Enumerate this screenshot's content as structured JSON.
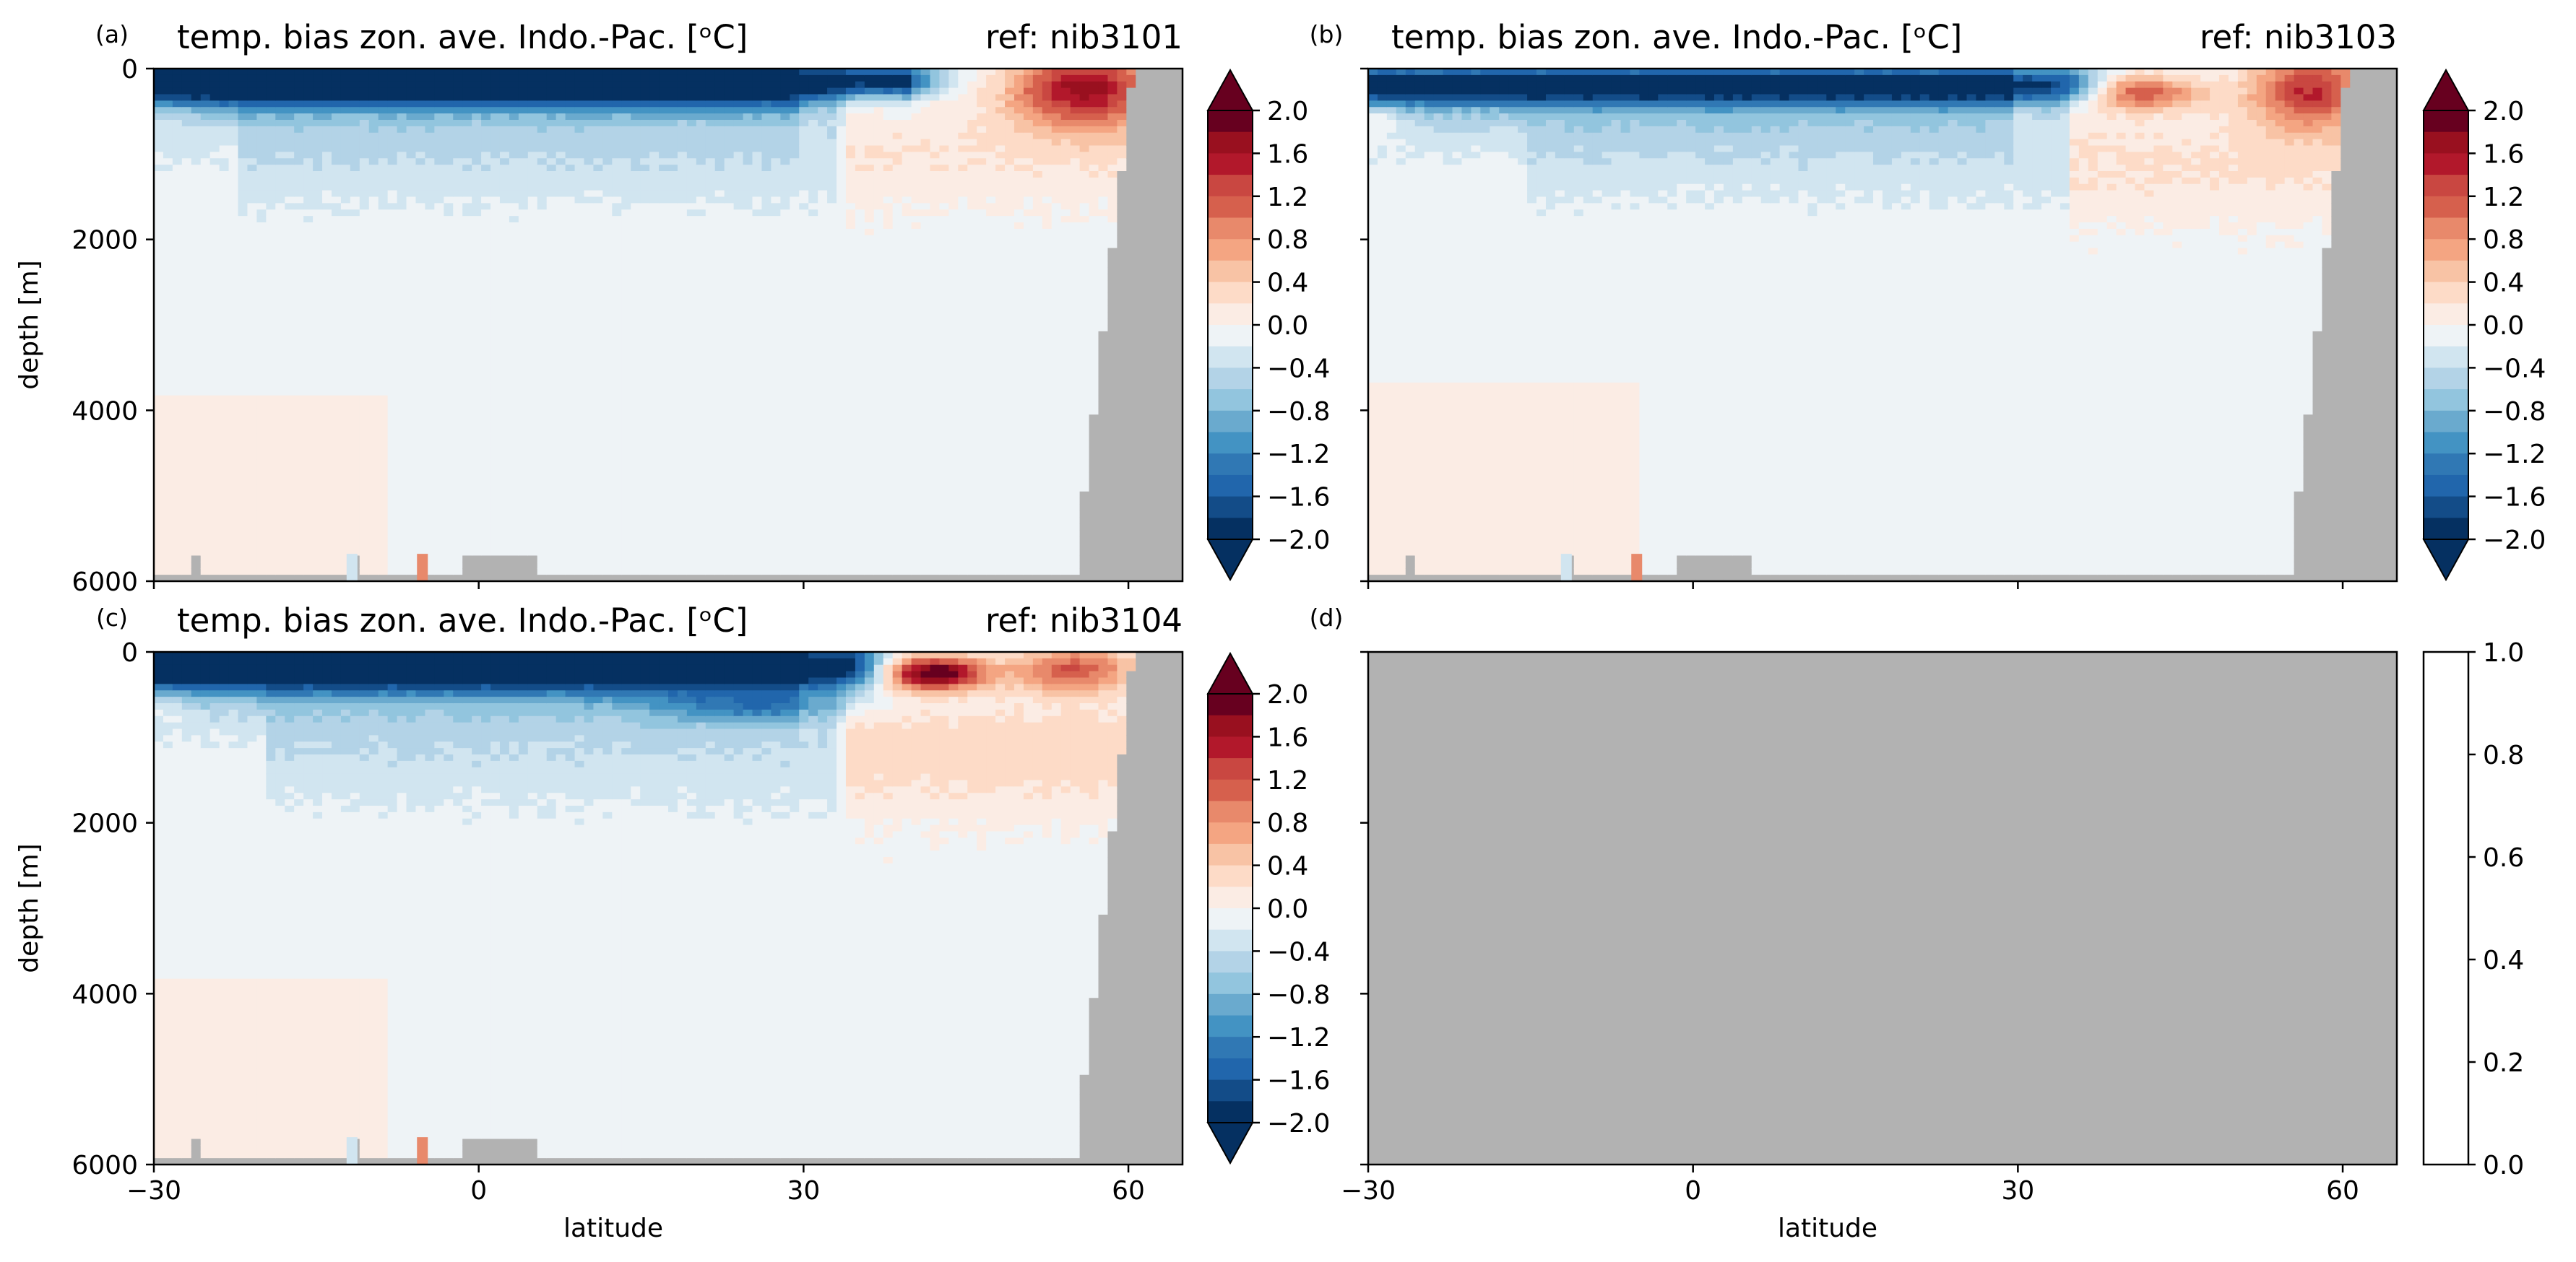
{
  "figure": {
    "panels": [
      {
        "letter": "(a)",
        "title": "temp. bias zon. ave. Indo.-Pac. [ᵒC]",
        "ref": "ref: nib3101",
        "empty": false,
        "show_ylabels": true,
        "show_xlabels": false,
        "field_variant": "a"
      },
      {
        "letter": "(b)",
        "title": "temp. bias zon. ave. Indo.-Pac. [ᵒC]",
        "ref": "ref: nib3103",
        "empty": false,
        "show_ylabels": false,
        "show_xlabels": false,
        "field_variant": "b"
      },
      {
        "letter": "(c)",
        "title": "temp. bias zon. ave. Indo.-Pac. [ᵒC]",
        "ref": "ref: nib3104",
        "empty": false,
        "show_ylabels": true,
        "show_xlabels": true,
        "field_variant": "c"
      },
      {
        "letter": "(d)",
        "title": "",
        "ref": "",
        "empty": true,
        "show_ylabels": false,
        "show_xlabels": true,
        "field_variant": "none"
      }
    ],
    "colorbar": {
      "ticks": [
        "2.0",
        "1.6",
        "1.2",
        "0.8",
        "0.4",
        "0.0",
        "−0.4",
        "−0.8",
        "−1.2",
        "−1.6",
        "−2.0"
      ],
      "levels": [
        "#67001f",
        "#99101f",
        "#b2182b",
        "#c94741",
        "#d6604d",
        "#e8896b",
        "#f4a582",
        "#f8c3a5",
        "#fddbc7",
        "#fbece4",
        "#eef3f6",
        "#d1e5f0",
        "#b3d3e7",
        "#92c5de",
        "#6aaace",
        "#4393c3",
        "#3078b4",
        "#2166ac",
        "#134c88",
        "#053061"
      ],
      "over_color": "#67001f",
      "under_color": "#053061"
    },
    "empty_colorbar_ticks": [
      "1.0",
      "0.8",
      "0.6",
      "0.4",
      "0.2",
      "0.0"
    ],
    "colors": {
      "land": "#b2b2b2",
      "background": "#ffffff"
    }
  },
  "chart_data": [
    {
      "type": "heatmap",
      "title": "temp. bias zon. ave. Indo.-Pac. [ᵒC]",
      "annotation": "ref: nib3101",
      "xlabel": "",
      "ylabel": "depth [m]",
      "xlim": [
        -30,
        65
      ],
      "ylim": [
        6000,
        0
      ],
      "xticks": [
        -30,
        0,
        30,
        60
      ],
      "yticks": [
        0,
        2000,
        4000,
        6000
      ],
      "color_range": [
        -2.0,
        2.0
      ],
      "features": [
        {
          "depth": [
            0,
            500
          ],
          "lat": [
            -29,
            38
          ],
          "bias": -1.8
        },
        {
          "depth": [
            250,
            500
          ],
          "lat": [
            33,
            42
          ],
          "bias": 0.6
        },
        {
          "depth": [
            0,
            900
          ],
          "lat": [
            46,
            62
          ],
          "bias": 1.6
        },
        {
          "depth": [
            500,
            1600
          ],
          "lat": [
            -20,
            33
          ],
          "bias": -0.3
        },
        {
          "depth": [
            500,
            1300
          ],
          "lat": [
            35,
            62
          ],
          "bias": 0.3
        },
        {
          "depth": [
            1600,
            3800
          ],
          "lat": [
            -30,
            62
          ],
          "bias": -0.1
        },
        {
          "depth": [
            3800,
            6000
          ],
          "lat": [
            -30,
            -8
          ],
          "bias": 0.1
        }
      ]
    },
    {
      "type": "heatmap",
      "title": "temp. bias zon. ave. Indo.-Pac. [ᵒC]",
      "annotation": "ref: nib3103",
      "xlabel": "",
      "ylabel": "",
      "xlim": [
        -30,
        65
      ],
      "ylim": [
        6000,
        0
      ],
      "xticks": [
        -30,
        0,
        30,
        60
      ],
      "yticks": [
        0,
        2000,
        4000,
        6000
      ],
      "color_range": [
        -2.0,
        2.0
      ],
      "features": [
        {
          "depth": [
            0,
            450
          ],
          "lat": [
            -29,
            30
          ],
          "bias": -1.7
        },
        {
          "depth": [
            100,
            500
          ],
          "lat": [
            34,
            46
          ],
          "bias": 1.0
        },
        {
          "depth": [
            0,
            800
          ],
          "lat": [
            48,
            62
          ],
          "bias": 1.4
        },
        {
          "depth": [
            500,
            1500
          ],
          "lat": [
            -15,
            35
          ],
          "bias": -0.3
        },
        {
          "depth": [
            600,
            1700
          ],
          "lat": [
            35,
            62
          ],
          "bias": 0.3
        },
        {
          "depth": [
            1700,
            3800
          ],
          "lat": [
            -30,
            62
          ],
          "bias": -0.1
        },
        {
          "depth": [
            3700,
            6000
          ],
          "lat": [
            -30,
            -5
          ],
          "bias": 0.1
        }
      ]
    },
    {
      "type": "heatmap",
      "title": "temp. bias zon. ave. Indo.-Pac. [ᵒC]",
      "annotation": "ref: nib3104",
      "xlabel": "latitude",
      "ylabel": "depth [m]",
      "xlim": [
        -30,
        65
      ],
      "ylim": [
        6000,
        0
      ],
      "xticks": [
        -30,
        0,
        30,
        60
      ],
      "yticks": [
        0,
        2000,
        4000,
        6000
      ],
      "color_range": [
        -2.0,
        2.0
      ],
      "features": [
        {
          "depth": [
            0,
            500
          ],
          "lat": [
            -29,
            30
          ],
          "bias": -1.8
        },
        {
          "depth": [
            50,
            450
          ],
          "lat": [
            34,
            46
          ],
          "bias": 1.9
        },
        {
          "depth": [
            0,
            500
          ],
          "lat": [
            47,
            62
          ],
          "bias": 1.2
        },
        {
          "depth": [
            500,
            1800
          ],
          "lat": [
            -20,
            33
          ],
          "bias": -0.3
        },
        {
          "depth": [
            500,
            1800
          ],
          "lat": [
            35,
            62
          ],
          "bias": 0.4
        },
        {
          "depth": [
            1800,
            3800
          ],
          "lat": [
            -30,
            62
          ],
          "bias": -0.1
        },
        {
          "depth": [
            3800,
            6000
          ],
          "lat": [
            -30,
            -8
          ],
          "bias": 0.1
        }
      ]
    },
    {
      "type": "heatmap",
      "title": "",
      "xlabel": "latitude",
      "ylabel": "",
      "xlim": [
        -30,
        65
      ],
      "ylim": [
        6000,
        0
      ],
      "xticks": [
        -30,
        0,
        30,
        60
      ],
      "color_range": [
        0.0,
        1.0
      ],
      "features": []
    }
  ]
}
